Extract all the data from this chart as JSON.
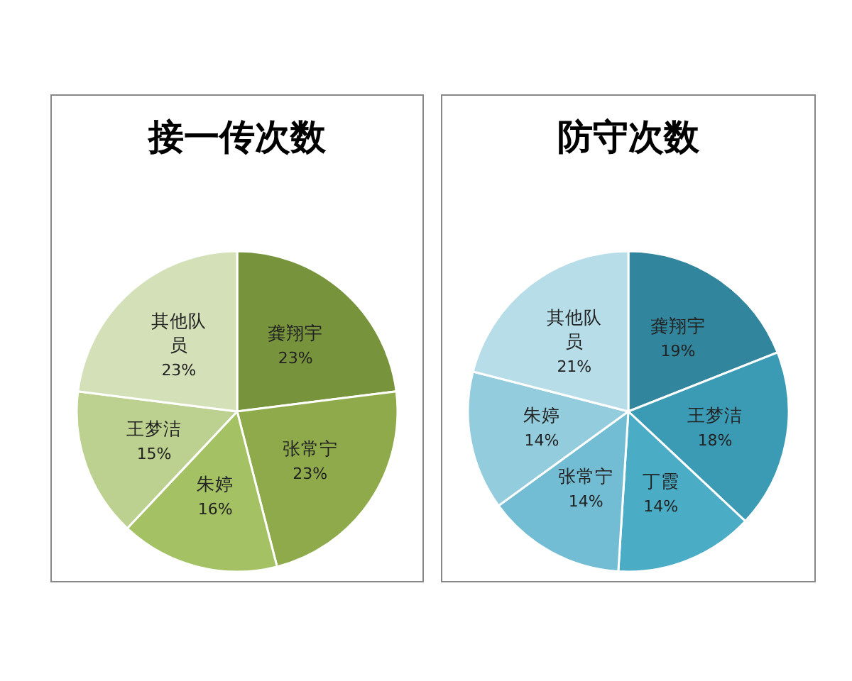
{
  "chart_data": [
    {
      "type": "pie",
      "title": "接一传次数",
      "categories": [
        "龚翔宇",
        "张常宁",
        "朱婷",
        "王梦洁",
        "其他队员"
      ],
      "values": [
        23,
        23,
        16,
        15,
        23
      ],
      "value_labels": [
        "23%",
        "23%",
        "16%",
        "15%",
        "23%"
      ],
      "colors": [
        "#77933c",
        "#8eaa4a",
        "#a4c164",
        "#bcd08f",
        "#d4e0b8"
      ]
    },
    {
      "type": "pie",
      "title": "防守次数",
      "categories": [
        "龚翔宇",
        "王梦洁",
        "丁霞",
        "张常宁",
        "朱婷",
        "其他队员"
      ],
      "values": [
        19,
        18,
        14,
        14,
        14,
        21
      ],
      "value_labels": [
        "19%",
        "18%",
        "14%",
        "14%",
        "14%",
        "21%"
      ],
      "colors": [
        "#31859c",
        "#3b9bb5",
        "#4bacc6",
        "#72bdd3",
        "#93cddd",
        "#b7dde8"
      ]
    }
  ]
}
